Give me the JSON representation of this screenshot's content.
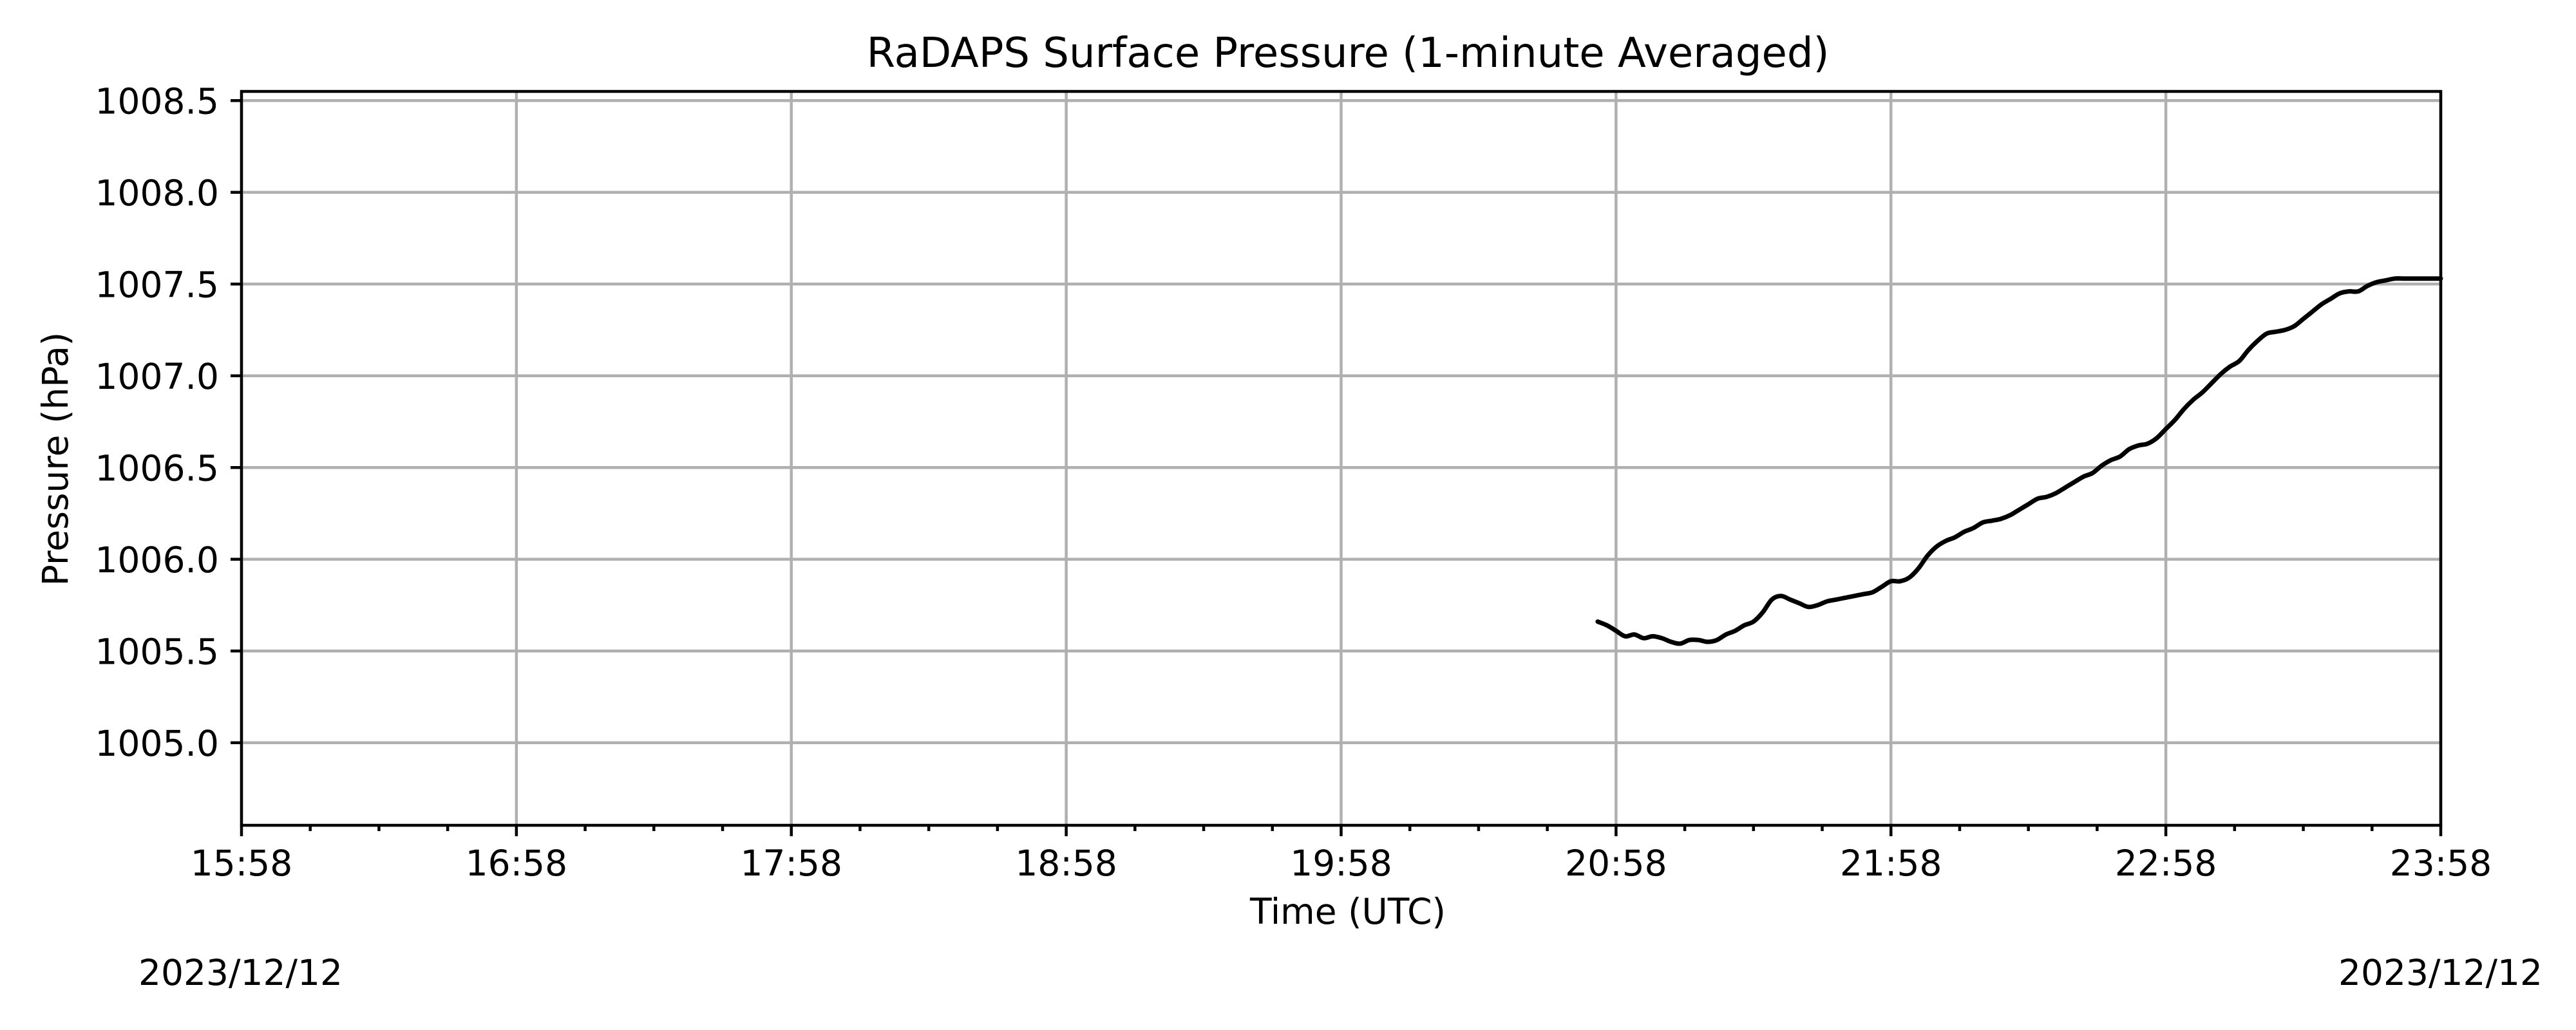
{
  "chart_data": {
    "type": "line",
    "title": "RaDAPS Surface Pressure (1-minute Averaged)",
    "xlabel": "Time (UTC)",
    "ylabel": "Pressure (hPa)",
    "x_tick_labels": [
      "15:58",
      "16:58",
      "17:58",
      "18:58",
      "19:58",
      "20:58",
      "21:58",
      "22:58",
      "23:58"
    ],
    "y_tick_labels": [
      "1005.0",
      "1005.5",
      "1006.0",
      "1006.5",
      "1007.0",
      "1007.5",
      "1008.0",
      "1008.5"
    ],
    "y_ticks": [
      1005.0,
      1005.5,
      1006.0,
      1006.5,
      1007.0,
      1007.5,
      1008.0,
      1008.5
    ],
    "xlim": [
      "15:58",
      "23:58"
    ],
    "ylim": [
      1004.55,
      1008.55
    ],
    "grid": true,
    "start_date": "2023/12/12",
    "end_date": "2023/12/12",
    "line_color": "#000000",
    "series": [
      {
        "x": [
          "20:54",
          "20:56",
          "20:58",
          "21:00",
          "21:02",
          "21:04",
          "21:06",
          "21:08",
          "21:10",
          "21:12",
          "21:14",
          "21:16",
          "21:18",
          "21:20",
          "21:22",
          "21:24",
          "21:26",
          "21:28",
          "21:30",
          "21:32",
          "21:34",
          "21:36",
          "21:38",
          "21:40",
          "21:42",
          "21:44",
          "21:46",
          "21:48",
          "21:50",
          "21:52",
          "21:54",
          "21:56",
          "21:58",
          "22:00",
          "22:02",
          "22:04",
          "22:06",
          "22:08",
          "22:10",
          "22:12",
          "22:14",
          "22:16",
          "22:18",
          "22:20",
          "22:22",
          "22:24",
          "22:26",
          "22:28",
          "22:30",
          "22:32",
          "22:34",
          "22:36",
          "22:38",
          "22:40",
          "22:42",
          "22:44",
          "22:46",
          "22:48",
          "22:50",
          "22:52",
          "22:54",
          "22:56",
          "22:58",
          "23:00",
          "23:02",
          "23:04",
          "23:06",
          "23:08",
          "23:10",
          "23:12",
          "23:14",
          "23:16",
          "23:18",
          "23:20",
          "23:22",
          "23:24",
          "23:26",
          "23:28",
          "23:30",
          "23:32",
          "23:34",
          "23:36",
          "23:38",
          "23:40",
          "23:42",
          "23:44",
          "23:46",
          "23:48",
          "23:50",
          "23:52",
          "23:54",
          "23:56",
          "23:58"
        ],
        "values": [
          1005.66,
          1005.64,
          1005.61,
          1005.58,
          1005.59,
          1005.57,
          1005.58,
          1005.57,
          1005.55,
          1005.54,
          1005.56,
          1005.56,
          1005.55,
          1005.56,
          1005.59,
          1005.61,
          1005.64,
          1005.66,
          1005.71,
          1005.78,
          1005.8,
          1005.78,
          1005.76,
          1005.74,
          1005.75,
          1005.77,
          1005.78,
          1005.79,
          1005.8,
          1005.81,
          1005.82,
          1005.85,
          1005.88,
          1005.88,
          1005.9,
          1005.95,
          1006.02,
          1006.07,
          1006.1,
          1006.12,
          1006.15,
          1006.17,
          1006.2,
          1006.21,
          1006.22,
          1006.24,
          1006.27,
          1006.3,
          1006.33,
          1006.34,
          1006.36,
          1006.39,
          1006.42,
          1006.45,
          1006.47,
          1006.51,
          1006.54,
          1006.56,
          1006.6,
          1006.62,
          1006.63,
          1006.66,
          1006.71,
          1006.76,
          1006.82,
          1006.87,
          1006.91,
          1006.96,
          1007.01,
          1007.05,
          1007.08,
          1007.14,
          1007.19,
          1007.23,
          1007.24,
          1007.25,
          1007.27,
          1007.31,
          1007.35,
          1007.39,
          1007.42,
          1007.45,
          1007.46,
          1007.46,
          1007.49,
          1007.51,
          1007.52,
          1007.53,
          1007.53,
          1007.53,
          1007.53,
          1007.53,
          1007.53
        ]
      }
    ]
  }
}
